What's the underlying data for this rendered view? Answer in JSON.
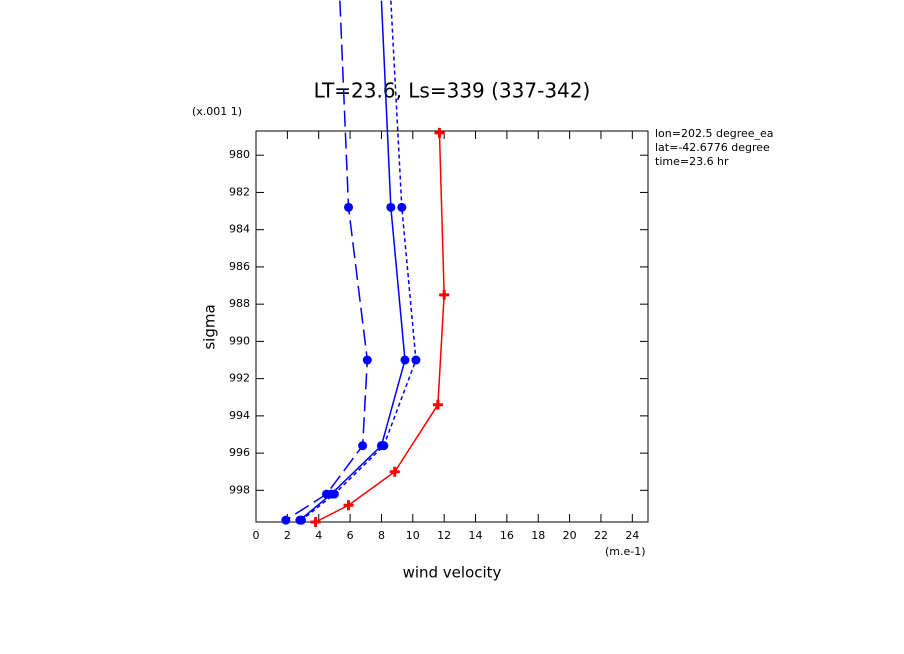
{
  "chart_data": {
    "type": "line",
    "title": "LT=23.6, Ls=339 (337-342)",
    "x_label": "wind velocity",
    "x_unit": "(m.e-1)",
    "y_label": "sigma",
    "y_unit": "(x.001 1)",
    "annotations": [
      "lon=202.5 degree_ea",
      "lat=-42.6776 degree",
      "time=23.6 hr"
    ],
    "xlim": [
      0,
      25
    ],
    "ylim": [
      978.7,
      999.7
    ],
    "y_inverted": true,
    "xticks": [
      0,
      2,
      4,
      6,
      8,
      10,
      12,
      14,
      16,
      18,
      20,
      22,
      24
    ],
    "yticks": [
      980,
      982,
      984,
      986,
      988,
      990,
      992,
      994,
      996,
      998
    ],
    "series": [
      {
        "color": "#ff0000",
        "dash": "solid",
        "marker": "plus",
        "x": [
          11.7,
          12.0,
          11.6,
          8.85,
          5.9,
          3.8
        ],
        "values": [
          978.8,
          987.5,
          993.4,
          997.0,
          998.8,
          999.7
        ]
      },
      {
        "color": "#0000ff",
        "dash": "solid",
        "marker": "circle",
        "x": [
          8.0,
          8.6,
          9.5,
          8.0,
          4.8,
          2.8
        ],
        "values": [
          971.7,
          982.8,
          991.0,
          995.6,
          998.2,
          999.6
        ]
      },
      {
        "color": "#0000ff",
        "dash": "dashed",
        "marker": "circle",
        "x": [
          8.6,
          9.3,
          10.2,
          8.15,
          5.0,
          2.9
        ],
        "values": [
          971.7,
          982.8,
          991.0,
          995.6,
          998.2,
          999.6
        ]
      },
      {
        "color": "#0000ff",
        "dash": "longdash",
        "marker": "circle",
        "x": [
          5.35,
          5.9,
          7.1,
          6.8,
          4.5,
          1.9
        ],
        "values": [
          971.7,
          982.8,
          991.0,
          995.6,
          998.2,
          999.6
        ]
      }
    ]
  }
}
